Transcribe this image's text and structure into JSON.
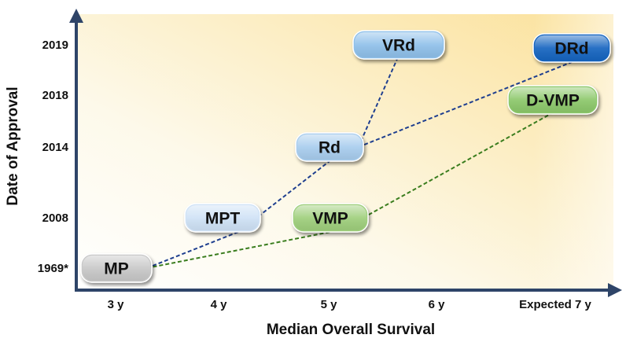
{
  "chart_data": {
    "type": "scatter",
    "title": "",
    "xlabel": "Median Overall Survival",
    "ylabel": "Date of Approval",
    "x_categories": [
      "3 y",
      "4 y",
      "5 y",
      "6 y",
      "Expected 7 y"
    ],
    "y_categories": [
      "1969*",
      "2008",
      "2014",
      "2018",
      "2019"
    ],
    "grid": false,
    "legend": "none",
    "points": [
      {
        "label": "MP",
        "x": "3 y",
        "y": "1969*",
        "color": "#c8c8c8",
        "text_color": "#111111"
      },
      {
        "label": "MPT",
        "x": "4 y",
        "y": "2008",
        "color": "#cfe2f6",
        "text_color": "#111111"
      },
      {
        "label": "VMP",
        "x": "5 y",
        "y": "2008",
        "color": "#9fcf7c",
        "text_color": "#111111"
      },
      {
        "label": "Rd",
        "x": "5 y",
        "y": "2014",
        "color": "#a8cdee",
        "text_color": "#111111"
      },
      {
        "label": "VRd",
        "x": "5 y",
        "y": "2019",
        "color": "#8fc0ea",
        "text_color": "#111111"
      },
      {
        "label": "D-VMP",
        "x": "Expected 7 y",
        "y": "2018",
        "color": "#8cc86a",
        "text_color": "#111111"
      },
      {
        "label": "DRd",
        "x": "Expected 7 y",
        "y": "2019",
        "color": "#1565c0",
        "text_color": "#111111"
      }
    ],
    "connections": [
      {
        "from": "MP",
        "to": "MPT",
        "color": "#1f3f8f"
      },
      {
        "from": "MPT",
        "to": "Rd",
        "color": "#1f3f8f"
      },
      {
        "from": "Rd",
        "to": "VRd",
        "color": "#1f3f8f"
      },
      {
        "from": "Rd",
        "to": "DRd",
        "color": "#1f3f8f"
      },
      {
        "from": "MP",
        "to": "VMP",
        "color": "#3a7d1e"
      },
      {
        "from": "VMP",
        "to": "D-VMP",
        "color": "#3a7d1e"
      }
    ],
    "colors": {
      "axis": "#2e4468",
      "background_warm": "#fbe6a6",
      "background_light": "#fdfbf2"
    }
  }
}
